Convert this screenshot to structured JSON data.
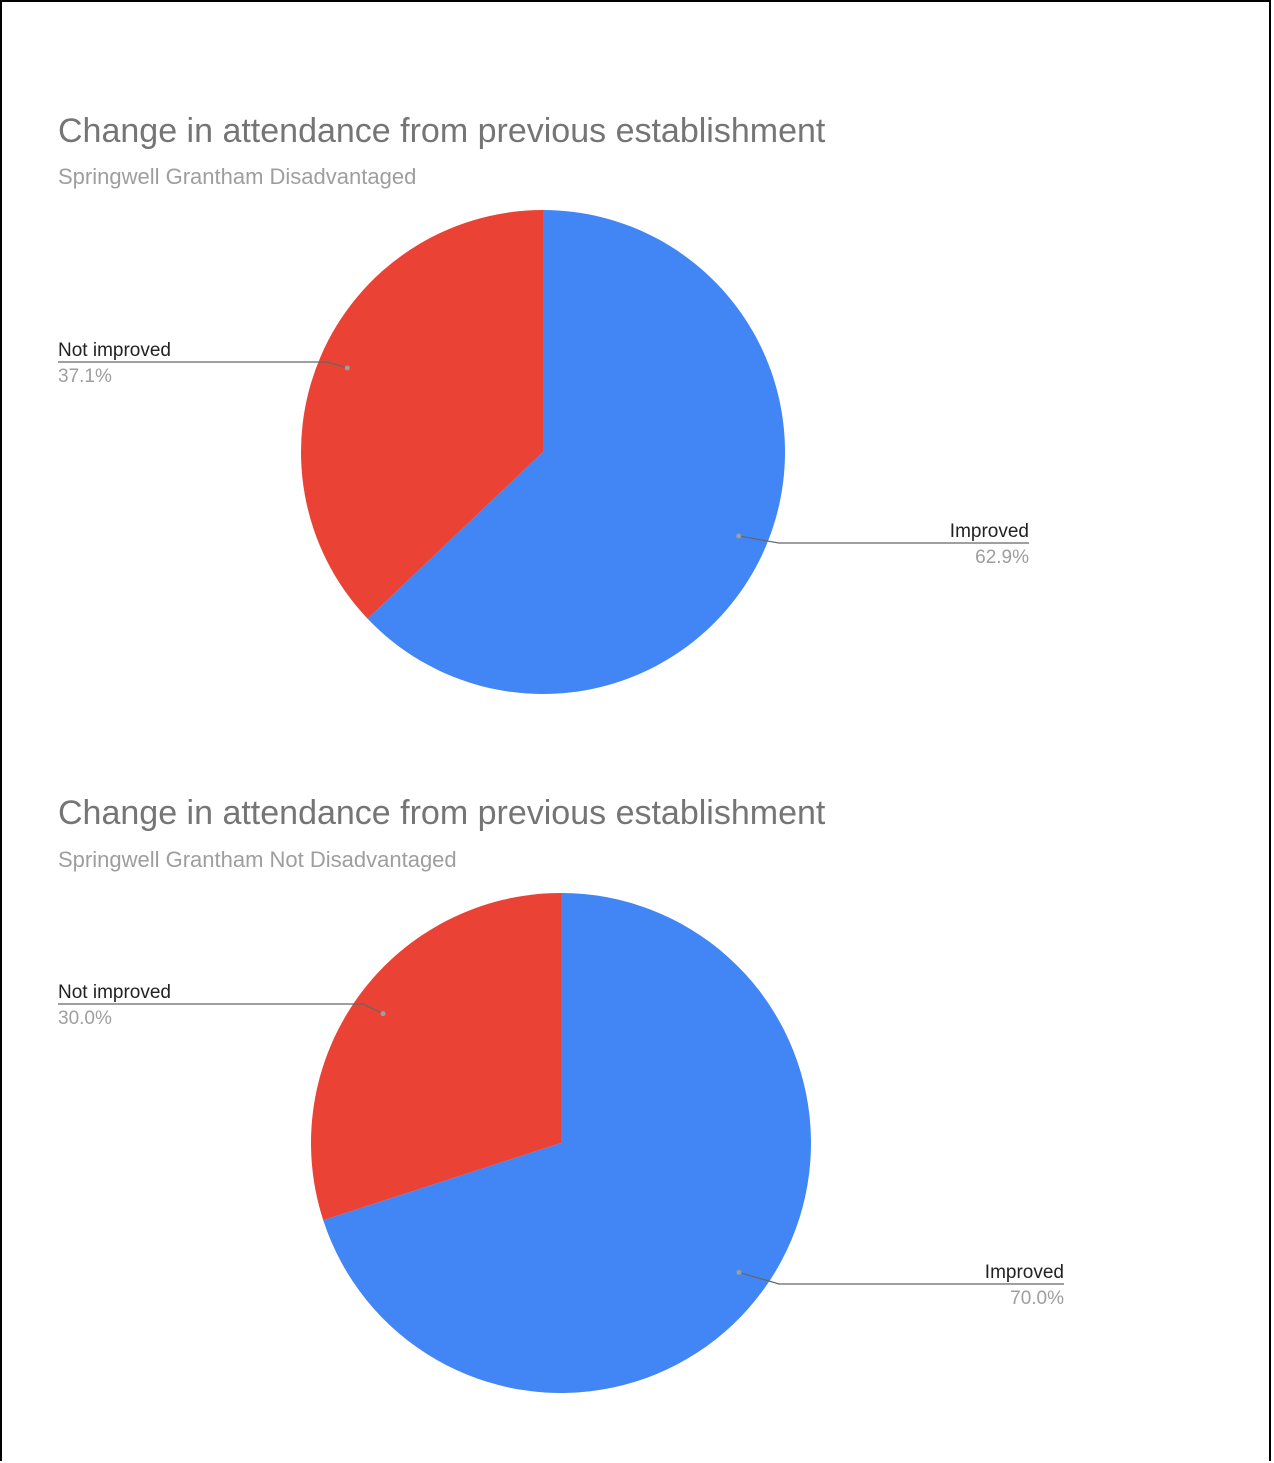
{
  "chart_data": [
    {
      "type": "pie",
      "title": "Change in attendance from previous establishment",
      "subtitle": "Springwell Grantham Disadvantaged",
      "slices": [
        {
          "label": "Improved",
          "value": 62.9,
          "value_label": "62.9%",
          "color": "#4285f4"
        },
        {
          "label": "Not improved",
          "value": 37.1,
          "value_label": "37.1%",
          "color": "#ea4335"
        }
      ]
    },
    {
      "type": "pie",
      "title": "Change in attendance from previous establishment",
      "subtitle": "Springwell Grantham Not Disadvantaged",
      "slices": [
        {
          "label": "Improved",
          "value": 70.0,
          "value_label": "70.0%",
          "color": "#4285f4"
        },
        {
          "label": "Not improved",
          "value": 30.0,
          "value_label": "30.0%",
          "color": "#ea4335"
        }
      ]
    }
  ]
}
